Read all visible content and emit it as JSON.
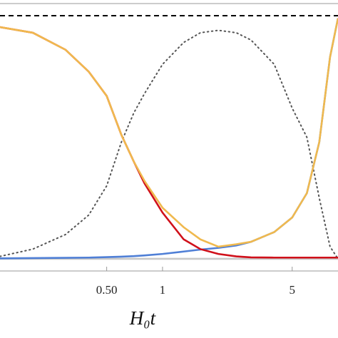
{
  "chart_data": {
    "type": "line",
    "xlabel": "H₀t",
    "xscale": "log",
    "xlim": [
      0.133,
      8.83
    ],
    "ylim": [
      -0.05,
      1.05
    ],
    "xticks": [
      {
        "value": 0.5,
        "label": "0.50"
      },
      1,
      5
    ],
    "x": [
      0.133,
      0.2,
      0.3,
      0.4,
      0.5,
      0.6,
      0.7,
      0.8,
      1,
      1.3,
      1.6,
      2,
      2.5,
      3,
      4,
      5,
      6,
      7,
      8,
      8.83
    ],
    "series": [
      {
        "color": "#c8c8c8",
        "dash": "solid",
        "values": [
          0,
          0,
          0,
          0,
          0,
          0,
          0,
          0,
          0,
          0,
          0,
          0,
          0,
          0,
          0,
          0,
          0,
          0,
          0,
          0
        ]
      },
      {
        "color": "#000000",
        "dash": "dashed",
        "values": [
          1,
          1,
          1,
          1,
          1,
          1,
          1,
          1,
          1,
          1,
          1,
          1,
          1,
          1,
          1,
          1,
          1,
          1,
          1,
          1
        ]
      },
      {
        "color": "#555555",
        "dash": "dotted",
        "values": [
          0.01,
          0.04,
          0.1,
          0.18,
          0.3,
          0.48,
          0.6,
          0.68,
          0.8,
          0.89,
          0.93,
          0.94,
          0.93,
          0.9,
          0.8,
          0.62,
          0.5,
          0.25,
          0.05,
          0
        ]
      },
      {
        "color": "#4f7fd6",
        "dash": "solid",
        "values": [
          0.002,
          0.003,
          0.004,
          0.005,
          0.007,
          0.009,
          0.011,
          0.014,
          0.02,
          0.03,
          0.038,
          0.045,
          0.055,
          0.07,
          0.11,
          0.17,
          0.27,
          0.48,
          0.83,
          0.99
        ]
      },
      {
        "color": "#d0101a",
        "dash": "solid",
        "values": [
          0.953,
          0.93,
          0.86,
          0.77,
          0.67,
          0.51,
          0.4,
          0.31,
          0.19,
          0.08,
          0.04,
          0.02,
          0.01,
          0.006,
          0.005,
          0.005,
          0.005,
          0.005,
          0.005,
          0.005
        ]
      },
      {
        "color": "#f0b94e",
        "dash": "solid",
        "values": [
          0.953,
          0.93,
          0.86,
          0.77,
          0.67,
          0.51,
          0.4,
          0.32,
          0.21,
          0.13,
          0.08,
          0.05,
          0.06,
          0.07,
          0.11,
          0.17,
          0.27,
          0.48,
          0.83,
          0.99
        ]
      }
    ]
  }
}
